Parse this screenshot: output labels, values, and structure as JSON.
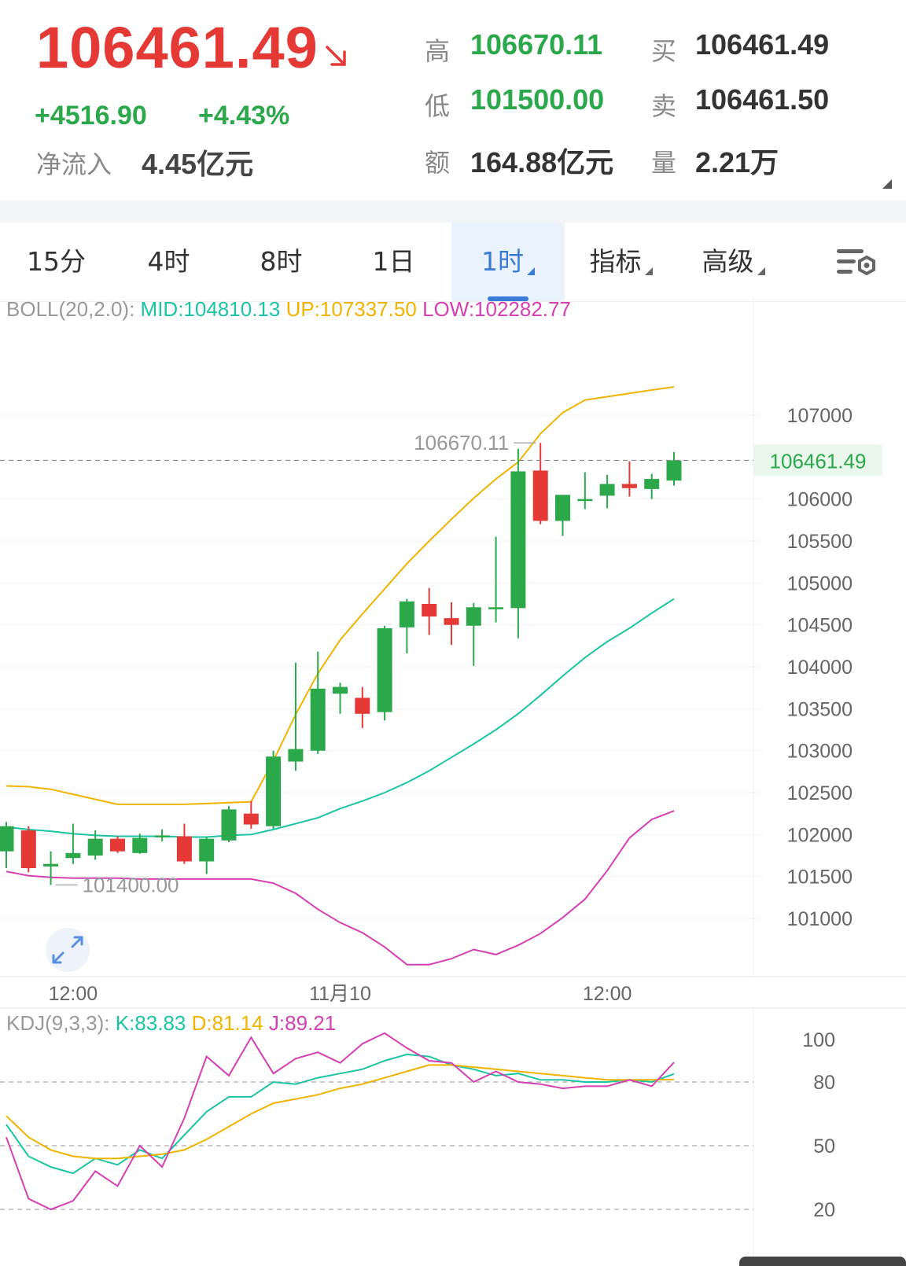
{
  "quote": {
    "price": "106461.49",
    "change": "+4516.90",
    "change_pct": "+4.43%",
    "net_inflow_label": "净流入",
    "net_inflow_value": "4.45亿元",
    "high_label": "高",
    "high_value": "106670.11",
    "low_label": "低",
    "low_value": "101500.00",
    "amount_label": "额",
    "amount_value": "164.88亿元",
    "buy_label": "买",
    "buy_value": "106461.49",
    "sell_label": "卖",
    "sell_value": "106461.50",
    "volume_label": "量",
    "volume_value": "2.21万",
    "colors": {
      "up": "#2aa84a",
      "down": "#e53935"
    }
  },
  "tabs": [
    {
      "label": "15分",
      "active": false,
      "dropdown": false
    },
    {
      "label": "4时",
      "active": false,
      "dropdown": false
    },
    {
      "label": "8时",
      "active": false,
      "dropdown": false
    },
    {
      "label": "1日",
      "active": false,
      "dropdown": false
    },
    {
      "label": "1时",
      "active": true,
      "dropdown": true
    },
    {
      "label": "指标",
      "active": false,
      "dropdown": true
    },
    {
      "label": "高级",
      "active": false,
      "dropdown": true
    }
  ],
  "settings_icon": "chart-settings-icon",
  "expand_icon": "expand-arrows-icon",
  "chart_data": [
    {
      "type": "candlestick",
      "indicator": {
        "name": "BOLL(20,2.0):",
        "mid_label": "MID:104810.13",
        "up_label": "UP:107337.50",
        "low_label": "LOW:102282.77"
      },
      "ylim": [
        100500,
        107600
      ],
      "yticks": [
        101000,
        101500,
        102000,
        102500,
        103000,
        103500,
        104000,
        104500,
        105000,
        105500,
        106000,
        107000
      ],
      "x_labels": [
        "12:00",
        "11月10",
        "12:00"
      ],
      "x_label_index": [
        3,
        15,
        27
      ],
      "last_price_label": "106461.49",
      "last_price": 106461.49,
      "high_annotation": {
        "text": "106670.11",
        "index": 24,
        "value": 106670.11
      },
      "low_annotation": {
        "text": "101400.00",
        "index": 2,
        "value": 101400.0
      },
      "candles": [
        {
          "o": 101800,
          "h": 102150,
          "l": 101600,
          "c": 102100
        },
        {
          "o": 102050,
          "h": 102100,
          "l": 101550,
          "c": 101600
        },
        {
          "o": 101620,
          "h": 101800,
          "l": 101400,
          "c": 101650
        },
        {
          "o": 101720,
          "h": 102130,
          "l": 101650,
          "c": 101780
        },
        {
          "o": 101750,
          "h": 102050,
          "l": 101700,
          "c": 101950
        },
        {
          "o": 101950,
          "h": 101980,
          "l": 101780,
          "c": 101800
        },
        {
          "o": 101780,
          "h": 102010,
          "l": 101770,
          "c": 101960
        },
        {
          "o": 101970,
          "h": 102060,
          "l": 101920,
          "c": 101990
        },
        {
          "o": 101980,
          "h": 102130,
          "l": 101650,
          "c": 101680
        },
        {
          "o": 101680,
          "h": 101970,
          "l": 101530,
          "c": 101950
        },
        {
          "o": 101930,
          "h": 102340,
          "l": 101910,
          "c": 102300
        },
        {
          "o": 102250,
          "h": 102400,
          "l": 102070,
          "c": 102120
        },
        {
          "o": 102100,
          "h": 103000,
          "l": 102070,
          "c": 102930
        },
        {
          "o": 102870,
          "h": 104050,
          "l": 102760,
          "c": 103020
        },
        {
          "o": 103000,
          "h": 104180,
          "l": 102960,
          "c": 103740
        },
        {
          "o": 103680,
          "h": 103810,
          "l": 103440,
          "c": 103760
        },
        {
          "o": 103630,
          "h": 103760,
          "l": 103270,
          "c": 103440
        },
        {
          "o": 103460,
          "h": 104490,
          "l": 103360,
          "c": 104460
        },
        {
          "o": 104470,
          "h": 104810,
          "l": 104160,
          "c": 104780
        },
        {
          "o": 104750,
          "h": 104940,
          "l": 104380,
          "c": 104600
        },
        {
          "o": 104580,
          "h": 104770,
          "l": 104260,
          "c": 104500
        },
        {
          "o": 104490,
          "h": 104760,
          "l": 104010,
          "c": 104710
        },
        {
          "o": 104700,
          "h": 105550,
          "l": 104530,
          "c": 104710
        },
        {
          "o": 104700,
          "h": 106600,
          "l": 104340,
          "c": 106330
        },
        {
          "o": 106340,
          "h": 106670,
          "l": 105700,
          "c": 105740
        },
        {
          "o": 105740,
          "h": 106040,
          "l": 105560,
          "c": 106050
        },
        {
          "o": 105990,
          "h": 106320,
          "l": 105880,
          "c": 106000
        },
        {
          "o": 106040,
          "h": 106290,
          "l": 105890,
          "c": 106180
        },
        {
          "o": 106180,
          "h": 106450,
          "l": 106030,
          "c": 106130
        },
        {
          "o": 106120,
          "h": 106300,
          "l": 106000,
          "c": 106240
        },
        {
          "o": 106220,
          "h": 106560,
          "l": 106160,
          "c": 106461.49
        }
      ],
      "series": [
        {
          "name": "UP",
          "color": "#f0b400",
          "values": [
            102580,
            102570,
            102540,
            102480,
            102420,
            102360,
            102360,
            102360,
            102360,
            102370,
            102380,
            102390,
            102880,
            103430,
            103920,
            104320,
            104630,
            104930,
            105230,
            105500,
            105760,
            106010,
            106240,
            106440,
            106780,
            107030,
            107180,
            107220,
            107260,
            107300,
            107337.5
          ]
        },
        {
          "name": "MID",
          "color": "#1cc4a4",
          "values": [
            102090,
            102060,
            102040,
            102010,
            101990,
            101980,
            101980,
            101980,
            101970,
            101970,
            101990,
            102000,
            102060,
            102130,
            102200,
            102310,
            102400,
            102500,
            102620,
            102760,
            102920,
            103080,
            103250,
            103440,
            103660,
            103890,
            104110,
            104300,
            104460,
            104640,
            104810.13
          ]
        },
        {
          "name": "LOW",
          "color": "#d43fb2",
          "values": [
            101560,
            101510,
            101490,
            101480,
            101480,
            101480,
            101470,
            101470,
            101470,
            101470,
            101470,
            101470,
            101420,
            101300,
            101110,
            100950,
            100830,
            100660,
            100450,
            100450,
            100520,
            100630,
            100570,
            100680,
            100820,
            101010,
            101230,
            101570,
            101960,
            102180,
            102282.77
          ]
        }
      ]
    },
    {
      "type": "line",
      "indicator": {
        "name": "KDJ(9,3,3):",
        "k_label": "K:83.83",
        "d_label": "D:81.14",
        "j_label": "J:89.21"
      },
      "ylim": [
        15,
        108
      ],
      "yticks": [
        20,
        50,
        80,
        100
      ],
      "series": [
        {
          "name": "K",
          "color": "#1cc4a4",
          "values": [
            60,
            45,
            40,
            37,
            44,
            41,
            48,
            44,
            55,
            66,
            73,
            73,
            80,
            79,
            82,
            84,
            86,
            90,
            93,
            92,
            88,
            86,
            83,
            84,
            81,
            81,
            80,
            80,
            81,
            80,
            83.83
          ]
        },
        {
          "name": "D",
          "color": "#f0b400",
          "values": [
            64,
            54,
            48,
            45,
            44,
            44,
            45,
            46,
            48,
            53,
            59,
            65,
            70,
            72,
            74,
            77,
            79,
            82,
            85,
            88,
            88,
            87,
            86,
            85,
            84,
            83,
            82,
            81,
            81,
            81,
            81.14
          ]
        },
        {
          "name": "J",
          "color": "#d43fb2",
          "values": [
            54,
            25,
            20,
            24,
            38,
            31,
            50,
            40,
            63,
            92,
            83,
            101,
            84,
            91,
            94,
            89,
            98,
            103,
            96,
            90,
            89,
            80,
            85,
            80,
            79,
            77,
            78,
            78,
            81,
            78,
            89.21
          ]
        }
      ],
      "ref_lines": [
        80,
        50,
        20
      ]
    }
  ]
}
